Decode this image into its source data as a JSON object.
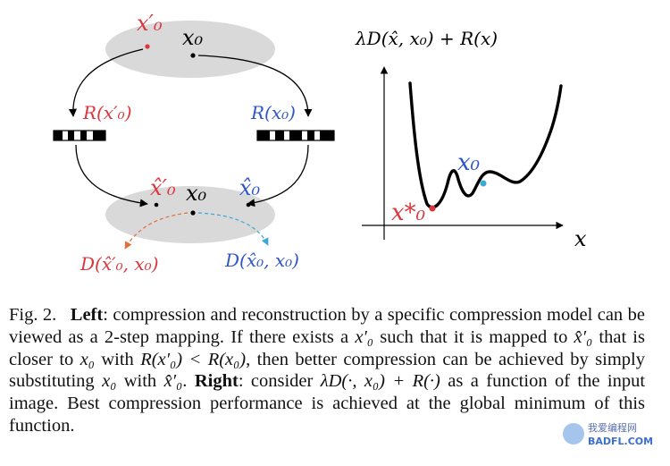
{
  "left": {
    "top_labels": {
      "x0_prime": "x′₀",
      "x0": "x₀"
    },
    "codes": {
      "left": "R(x′₀)",
      "right": "R(x₀)"
    },
    "bottom_labels": {
      "x0_prime_hat": "x̂′₀",
      "x0": "x₀",
      "x0_hat": "x̂₀"
    },
    "distortion": {
      "left": "D(x̂′₀, x₀)",
      "right": "D(x̂₀, x₀)"
    }
  },
  "right": {
    "ylabel": "λD(x̂, x₀) + R(x)",
    "xlabel": "x",
    "points": {
      "x0_star": "x*₀",
      "x0": "x₀"
    }
  },
  "caption": {
    "fig_label": "Fig. 2.",
    "left_head": "Left",
    "left_text_1": ": compression and reconstruction by a specific compression model can be viewed as a 2-step mapping. If there exists a ",
    "sym_a": "x′₀",
    "left_text_2": " such that it is mapped to ",
    "sym_b": "x̂′₀",
    "left_text_3": " that is closer to ",
    "sym_c": "x₀",
    "left_text_4": " with ",
    "sym_d": "R(x′₀) < R(x₀)",
    "left_text_5": ", then better compression can be achieved by simply substituting ",
    "sym_e": "x₀",
    "left_text_6": " with ",
    "sym_f": "x̂′₀",
    "left_text_7": ". ",
    "right_head": "Right",
    "right_text_1": ": consider ",
    "sym_g": "λD(·, x₀) + R(·)",
    "right_text_2": " as a function of the input image. Best compression performance is achieved at the global minimum of this function."
  },
  "watermark": {
    "line1": "我爱编程网",
    "line2": "BADFL.COM"
  },
  "colors": {
    "red": "#d9363e",
    "blue": "#2f56c8",
    "cyan": "#3aa9d6",
    "gray": "#d9d9d9"
  }
}
